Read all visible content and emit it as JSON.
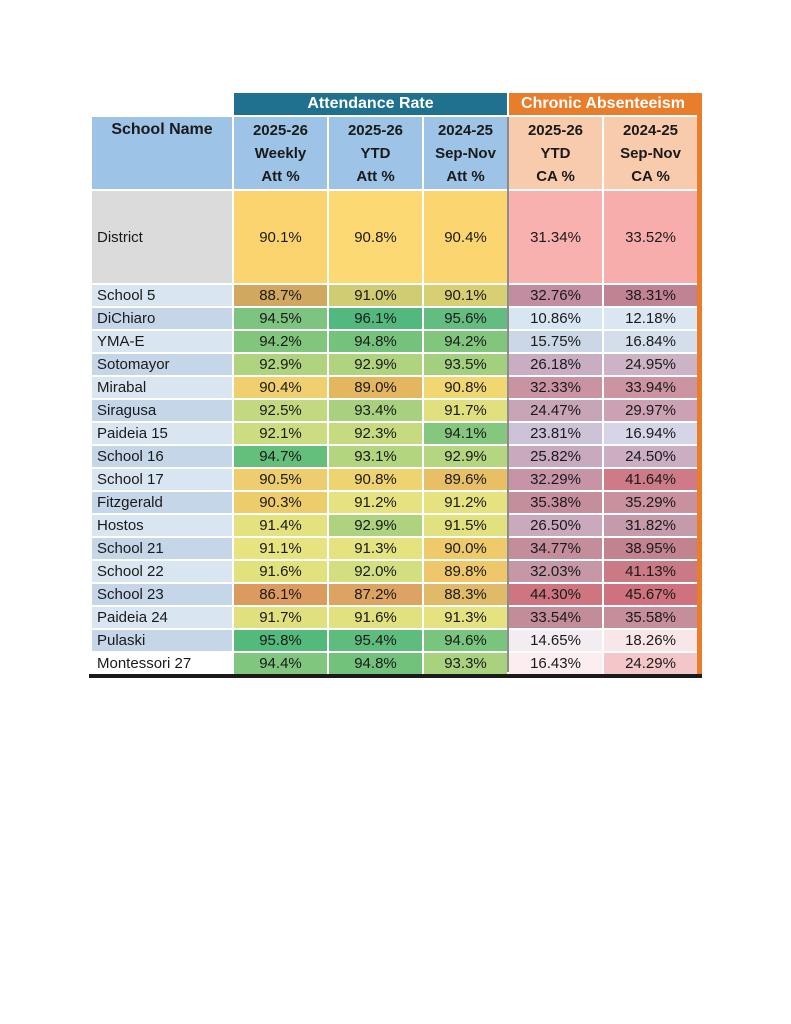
{
  "colors": {
    "teal": "#20708F",
    "brand_orange": "#E87E2B",
    "header_blue": "#9DC3E6",
    "header_peach": "#F8CBAD",
    "district_gray": "#DBDBDB",
    "row_blue_light": "#D9E5F1",
    "row_blue_dark": "#C4D6E8",
    "divider_gray": "#8C8C8C",
    "border_black": "#1A1A1A"
  },
  "header": {
    "attendance_group": "Attendance Rate",
    "ca_group": "Chronic Absenteeism",
    "school_col": "School Name",
    "columns": [
      {
        "text": "2025-26\nWeekly\nAtt %"
      },
      {
        "text": "2025-26\nYTD\nAtt %"
      },
      {
        "text": "2024-25\nSep-Nov\nAtt %"
      },
      {
        "text": "2025-26\nYTD\nCA %"
      },
      {
        "text": "2024-25\nSep-Nov\nCA %"
      }
    ]
  },
  "table": {
    "rows": [
      {
        "name": "District",
        "district": true,
        "name_bg": "#DBDBDB",
        "cells": [
          {
            "v": "90.1%",
            "bg": "#FBD46F"
          },
          {
            "v": "90.8%",
            "bg": "#FCD972"
          },
          {
            "v": "90.4%",
            "bg": "#FBD670"
          },
          {
            "v": "31.34%",
            "bg": "#F8B1AE"
          },
          {
            "v": "33.52%",
            "bg": "#F7ADAB"
          }
        ]
      },
      {
        "name": "School 5",
        "district": false,
        "name_bg": "#D9E5F1",
        "cells": [
          {
            "v": "88.7%",
            "bg": "#D1A860"
          },
          {
            "v": "91.0%",
            "bg": "#D0CC73"
          },
          {
            "v": "90.1%",
            "bg": "#D8CE74"
          },
          {
            "v": "32.76%",
            "bg": "#C28DA0"
          },
          {
            "v": "38.31%",
            "bg": "#C08394"
          }
        ]
      },
      {
        "name": "DiChiaro",
        "district": false,
        "name_bg": "#C4D6E8",
        "cells": [
          {
            "v": "94.5%",
            "bg": "#7CC47F"
          },
          {
            "v": "96.1%",
            "bg": "#51B97E"
          },
          {
            "v": "95.6%",
            "bg": "#63BD80"
          },
          {
            "v": "10.86%",
            "bg": "#D8E5F2"
          },
          {
            "v": "12.18%",
            "bg": "#DAE7F3"
          }
        ]
      },
      {
        "name": "YMA-E",
        "district": false,
        "name_bg": "#D9E5F1",
        "cells": [
          {
            "v": "94.2%",
            "bg": "#82C67E"
          },
          {
            "v": "94.8%",
            "bg": "#74C27C"
          },
          {
            "v": "94.2%",
            "bg": "#82C67E"
          },
          {
            "v": "15.75%",
            "bg": "#CBD7E6"
          },
          {
            "v": "16.84%",
            "bg": "#D3DEEA"
          }
        ]
      },
      {
        "name": "Sotomayor",
        "district": false,
        "name_bg": "#C4D6E8",
        "cells": [
          {
            "v": "92.9%",
            "bg": "#AFD37F"
          },
          {
            "v": "92.9%",
            "bg": "#AFD37F"
          },
          {
            "v": "93.5%",
            "bg": "#A3D07F"
          },
          {
            "v": "26.18%",
            "bg": "#C8ADC3"
          },
          {
            "v": "24.95%",
            "bg": "#CDB3C6"
          }
        ]
      },
      {
        "name": "Mirabal",
        "district": false,
        "name_bg": "#D9E5F1",
        "cells": [
          {
            "v": "90.4%",
            "bg": "#F0CF6E"
          },
          {
            "v": "89.0%",
            "bg": "#E5B660"
          },
          {
            "v": "90.8%",
            "bg": "#F1D771"
          },
          {
            "v": "32.33%",
            "bg": "#CA93A2"
          },
          {
            "v": "33.94%",
            "bg": "#CC93A0"
          }
        ]
      },
      {
        "name": "Siragusa",
        "district": false,
        "name_bg": "#C4D6E8",
        "cells": [
          {
            "v": "92.5%",
            "bg": "#C2D980"
          },
          {
            "v": "93.4%",
            "bg": "#A8D17F"
          },
          {
            "v": "91.7%",
            "bg": "#E0E07E"
          },
          {
            "v": "24.47%",
            "bg": "#C8A4B7"
          },
          {
            "v": "29.97%",
            "bg": "#CBA1B3"
          }
        ]
      },
      {
        "name": "Paideia 15",
        "district": false,
        "name_bg": "#D9E5F1",
        "cells": [
          {
            "v": "92.1%",
            "bg": "#CBDC81"
          },
          {
            "v": "92.3%",
            "bg": "#C6DB80"
          },
          {
            "v": "94.1%",
            "bg": "#85C77E"
          },
          {
            "v": "23.81%",
            "bg": "#CDC3D9"
          },
          {
            "v": "16.94%",
            "bg": "#D4D6E8"
          }
        ]
      },
      {
        "name": "School 16",
        "district": false,
        "name_bg": "#C4D6E8",
        "cells": [
          {
            "v": "94.7%",
            "bg": "#65BF7C"
          },
          {
            "v": "93.1%",
            "bg": "#B3D580"
          },
          {
            "v": "92.9%",
            "bg": "#B5D680"
          },
          {
            "v": "25.82%",
            "bg": "#C8A9BE"
          },
          {
            "v": "24.50%",
            "bg": "#CCAEC2"
          }
        ]
      },
      {
        "name": "School 17",
        "district": false,
        "name_bg": "#D9E5F1",
        "cells": [
          {
            "v": "90.5%",
            "bg": "#EDCD6D"
          },
          {
            "v": "90.8%",
            "bg": "#EFD370"
          },
          {
            "v": "89.6%",
            "bg": "#E9BF66"
          },
          {
            "v": "32.29%",
            "bg": "#C794A5"
          },
          {
            "v": "41.64%",
            "bg": "#CF7B87"
          }
        ]
      },
      {
        "name": "Fitzgerald",
        "district": false,
        "name_bg": "#C4D6E8",
        "cells": [
          {
            "v": "90.3%",
            "bg": "#EDCC6C"
          },
          {
            "v": "91.2%",
            "bg": "#E6E27F"
          },
          {
            "v": "91.2%",
            "bg": "#E6E27F"
          },
          {
            "v": "35.38%",
            "bg": "#C48E9D"
          },
          {
            "v": "35.29%",
            "bg": "#C9909E"
          }
        ]
      },
      {
        "name": "Hostos",
        "district": false,
        "name_bg": "#D9E5F1",
        "cells": [
          {
            "v": "91.4%",
            "bg": "#E3E27F"
          },
          {
            "v": "92.9%",
            "bg": "#AED37F"
          },
          {
            "v": "91.5%",
            "bg": "#E2E17F"
          },
          {
            "v": "26.50%",
            "bg": "#CBA9BD"
          },
          {
            "v": "31.82%",
            "bg": "#C59AAA"
          }
        ]
      },
      {
        "name": "School 21",
        "district": false,
        "name_bg": "#C4D6E8",
        "cells": [
          {
            "v": "91.1%",
            "bg": "#E7E380"
          },
          {
            "v": "91.3%",
            "bg": "#E5E380"
          },
          {
            "v": "90.0%",
            "bg": "#EFCA6A"
          },
          {
            "v": "34.77%",
            "bg": "#C38D9B"
          },
          {
            "v": "38.95%",
            "bg": "#C2838F"
          }
        ]
      },
      {
        "name": "School 22",
        "district": false,
        "name_bg": "#D9E5F1",
        "cells": [
          {
            "v": "91.6%",
            "bg": "#E1E17E"
          },
          {
            "v": "92.0%",
            "bg": "#D3DE81"
          },
          {
            "v": "89.8%",
            "bg": "#EDC769"
          },
          {
            "v": "32.03%",
            "bg": "#C597A7"
          },
          {
            "v": "41.13%",
            "bg": "#CA7A85"
          }
        ]
      },
      {
        "name": "School 23",
        "district": false,
        "name_bg": "#C4D6E8",
        "cells": [
          {
            "v": "86.1%",
            "bg": "#DB9A5E"
          },
          {
            "v": "87.2%",
            "bg": "#DDA362"
          },
          {
            "v": "88.3%",
            "bg": "#DEBA69"
          },
          {
            "v": "44.30%",
            "bg": "#CE7580"
          },
          {
            "v": "45.67%",
            "bg": "#CF727E"
          }
        ]
      },
      {
        "name": "Paideia 24",
        "district": false,
        "name_bg": "#D9E5F1",
        "cells": [
          {
            "v": "91.7%",
            "bg": "#E0E17E"
          },
          {
            "v": "91.6%",
            "bg": "#E1E17E"
          },
          {
            "v": "91.3%",
            "bg": "#E5E380"
          },
          {
            "v": "33.54%",
            "bg": "#C28C99"
          },
          {
            "v": "35.58%",
            "bg": "#C68E9B"
          }
        ]
      },
      {
        "name": "Pulaski",
        "district": false,
        "name_bg": "#C4D6E8",
        "cells": [
          {
            "v": "95.8%",
            "bg": "#54BA7B"
          },
          {
            "v": "95.4%",
            "bg": "#5EBD7D"
          },
          {
            "v": "94.6%",
            "bg": "#79C57D"
          },
          {
            "v": "14.65%",
            "bg": "#F3ECF1"
          },
          {
            "v": "18.26%",
            "bg": "#F9E6E9"
          }
        ]
      },
      {
        "name": "Montessori 27",
        "district": false,
        "name_bg": "#FFFFFF",
        "cells": [
          {
            "v": "94.4%",
            "bg": "#80C67E"
          },
          {
            "v": "94.8%",
            "bg": "#72C27C"
          },
          {
            "v": "93.3%",
            "bg": "#A9D27F"
          },
          {
            "v": "16.43%",
            "bg": "#FBEDF0"
          },
          {
            "v": "24.29%",
            "bg": "#F3C6CA"
          }
        ]
      }
    ]
  }
}
